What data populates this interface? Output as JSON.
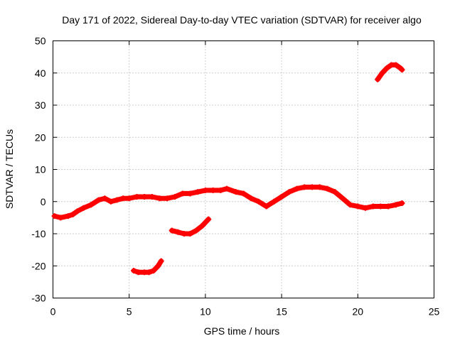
{
  "chart_data": {
    "type": "scatter",
    "title": "Day 171 of 2022, Sidereal Day-to-day VTEC variation (SDTVAR) for receiver algo",
    "xlabel": "GPS time / hours",
    "ylabel": "SDTVAR / TECUs",
    "xlim": [
      0,
      25
    ],
    "ylim": [
      -30,
      50
    ],
    "xticks": [
      0,
      5,
      10,
      15,
      20,
      25
    ],
    "yticks": [
      -30,
      -20,
      -10,
      0,
      10,
      20,
      30,
      40,
      50
    ],
    "grid": true,
    "color": "#ff0000",
    "series": [
      {
        "name": "main-trace",
        "x": [
          0.1,
          0.5,
          1.0,
          1.3,
          1.6,
          2.0,
          2.5,
          3.0,
          3.4,
          3.8,
          4.2,
          4.6,
          5.0,
          5.5,
          6.0,
          6.5,
          7.0,
          7.5,
          8.0,
          8.5,
          9.0,
          9.5,
          10.0,
          10.5,
          11.0,
          11.4,
          12.0,
          12.5,
          13.0,
          13.5,
          14.0,
          14.5,
          15.0,
          15.5,
          16.0,
          16.5,
          17.0,
          17.5,
          18.0,
          18.5,
          19.0,
          19.5,
          20.0,
          20.5,
          21.0,
          21.5,
          22.0,
          22.5,
          22.9
        ],
        "y": [
          -4.5,
          -5,
          -4.5,
          -4,
          -3,
          -2,
          -1,
          0.5,
          1,
          0,
          0.5,
          1,
          1,
          1.5,
          1.5,
          1.5,
          1,
          1,
          1.5,
          2.5,
          2.5,
          3,
          3.5,
          3.5,
          3.5,
          4,
          3,
          2.5,
          1,
          0,
          -1.5,
          0,
          1.5,
          3,
          4,
          4.5,
          4.5,
          4.5,
          4,
          3,
          1,
          -1,
          -1.5,
          -2,
          -1.5,
          -1.5,
          -1.5,
          -1,
          -0.5
        ]
      },
      {
        "name": "segment-low",
        "x": [
          5.3,
          5.6,
          6.0,
          6.3,
          6.6,
          6.9,
          7.1
        ],
        "y": [
          -21.5,
          -22,
          -22,
          -22,
          -21.5,
          -20,
          -18.5
        ]
      },
      {
        "name": "segment-mid",
        "x": [
          7.8,
          8.2,
          8.6,
          9.0,
          9.4,
          9.8,
          10.2
        ],
        "y": [
          -9,
          -9.5,
          -10,
          -10,
          -9,
          -7.5,
          -5.5
        ]
      },
      {
        "name": "segment-high",
        "x": [
          21.3,
          21.6,
          21.9,
          22.2,
          22.5,
          22.8,
          22.9
        ],
        "y": [
          38,
          40,
          41.5,
          42.5,
          42.5,
          41.5,
          41
        ]
      }
    ]
  }
}
